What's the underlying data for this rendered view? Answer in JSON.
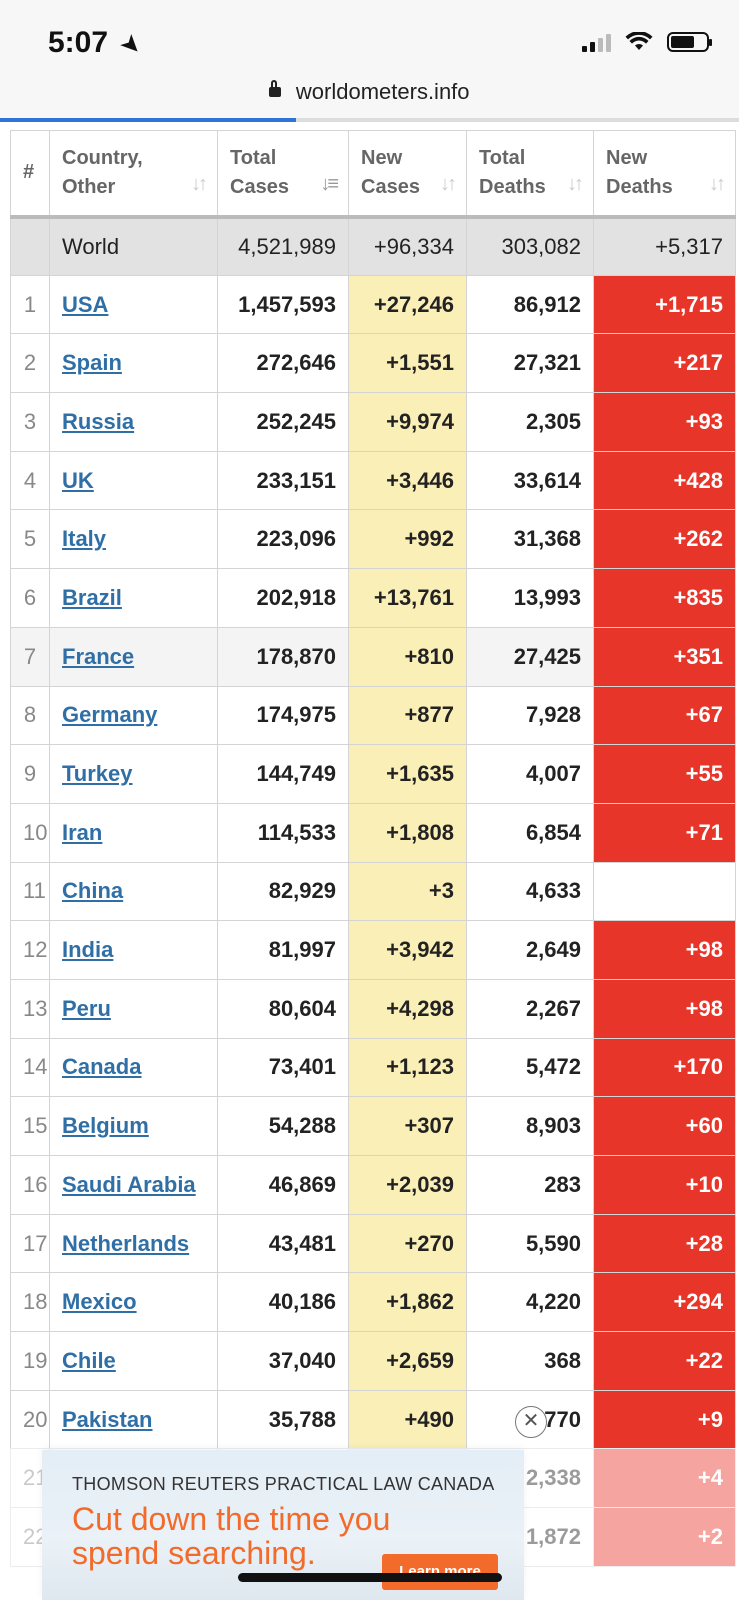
{
  "status": {
    "time": "5:07"
  },
  "browser": {
    "url": "worldometers.info"
  },
  "table": {
    "headers": {
      "rank": "#",
      "country_line1": "Country,",
      "country_line2": "Other",
      "total_cases_line1": "Total",
      "total_cases_line2": "Cases",
      "new_cases_line1": "New",
      "new_cases_line2": "Cases",
      "total_deaths_line1": "Total",
      "total_deaths_line2": "Deaths",
      "new_deaths_line1": "New",
      "new_deaths_line2": "Deaths"
    },
    "world": {
      "country": "World",
      "total_cases": "4,521,989",
      "new_cases": "+96,334",
      "total_deaths": "303,082",
      "new_deaths": "+5,317"
    },
    "rows": [
      {
        "rank": "1",
        "country": "USA",
        "total_cases": "1,457,593",
        "new_cases": "+27,246",
        "total_deaths": "86,912",
        "new_deaths": "+1,715"
      },
      {
        "rank": "2",
        "country": "Spain",
        "total_cases": "272,646",
        "new_cases": "+1,551",
        "total_deaths": "27,321",
        "new_deaths": "+217"
      },
      {
        "rank": "3",
        "country": "Russia",
        "total_cases": "252,245",
        "new_cases": "+9,974",
        "total_deaths": "2,305",
        "new_deaths": "+93"
      },
      {
        "rank": "4",
        "country": "UK",
        "total_cases": "233,151",
        "new_cases": "+3,446",
        "total_deaths": "33,614",
        "new_deaths": "+428"
      },
      {
        "rank": "5",
        "country": "Italy",
        "total_cases": "223,096",
        "new_cases": "+992",
        "total_deaths": "31,368",
        "new_deaths": "+262"
      },
      {
        "rank": "6",
        "country": "Brazil",
        "total_cases": "202,918",
        "new_cases": "+13,761",
        "total_deaths": "13,993",
        "new_deaths": "+835"
      },
      {
        "rank": "7",
        "country": "France",
        "total_cases": "178,870",
        "new_cases": "+810",
        "total_deaths": "27,425",
        "new_deaths": "+351"
      },
      {
        "rank": "8",
        "country": "Germany",
        "total_cases": "174,975",
        "new_cases": "+877",
        "total_deaths": "7,928",
        "new_deaths": "+67"
      },
      {
        "rank": "9",
        "country": "Turkey",
        "total_cases": "144,749",
        "new_cases": "+1,635",
        "total_deaths": "4,007",
        "new_deaths": "+55"
      },
      {
        "rank": "10",
        "country": "Iran",
        "total_cases": "114,533",
        "new_cases": "+1,808",
        "total_deaths": "6,854",
        "new_deaths": "+71"
      },
      {
        "rank": "11",
        "country": "China",
        "total_cases": "82,929",
        "new_cases": "+3",
        "total_deaths": "4,633",
        "new_deaths": ""
      },
      {
        "rank": "12",
        "country": "India",
        "total_cases": "81,997",
        "new_cases": "+3,942",
        "total_deaths": "2,649",
        "new_deaths": "+98"
      },
      {
        "rank": "13",
        "country": "Peru",
        "total_cases": "80,604",
        "new_cases": "+4,298",
        "total_deaths": "2,267",
        "new_deaths": "+98"
      },
      {
        "rank": "14",
        "country": "Canada",
        "total_cases": "73,401",
        "new_cases": "+1,123",
        "total_deaths": "5,472",
        "new_deaths": "+170"
      },
      {
        "rank": "15",
        "country": "Belgium",
        "total_cases": "54,288",
        "new_cases": "+307",
        "total_deaths": "8,903",
        "new_deaths": "+60"
      },
      {
        "rank": "16",
        "country": "Saudi Arabia",
        "total_cases": "46,869",
        "new_cases": "+2,039",
        "total_deaths": "283",
        "new_deaths": "+10"
      },
      {
        "rank": "17",
        "country": "Netherlands",
        "total_cases": "43,481",
        "new_cases": "+270",
        "total_deaths": "5,590",
        "new_deaths": "+28"
      },
      {
        "rank": "18",
        "country": "Mexico",
        "total_cases": "40,186",
        "new_cases": "+1,862",
        "total_deaths": "4,220",
        "new_deaths": "+294"
      },
      {
        "rank": "19",
        "country": "Chile",
        "total_cases": "37,040",
        "new_cases": "+2,659",
        "total_deaths": "368",
        "new_deaths": "+22"
      },
      {
        "rank": "20",
        "country": "Pakistan",
        "total_cases": "35,788",
        "new_cases": "+490",
        "total_deaths": "770",
        "new_deaths": "+9"
      },
      {
        "rank": "21",
        "country": "",
        "total_cases": "",
        "new_cases": "",
        "total_deaths": "2,338",
        "new_deaths": "+4"
      },
      {
        "rank": "22",
        "country": "",
        "total_cases": "",
        "new_cases": "",
        "total_deaths": "1,872",
        "new_deaths": "+2"
      }
    ]
  },
  "ad": {
    "brand": "THOMSON REUTERS PRACTICAL LAW CANADA",
    "headline_line1": "Cut down the time you",
    "headline_line2": "spend searching.",
    "cta": "Learn more",
    "close_glyph": "✕"
  },
  "colors": {
    "new_deaths_bg": "#e8352a",
    "new_cases_bg": "#fbefb8",
    "link": "#2f6fa6",
    "progress": "#2e74d8",
    "ad_accent": "#f26b2b"
  },
  "icons": [
    "location-arrow-icon",
    "cellular-signal-icon",
    "wifi-icon",
    "battery-icon",
    "lock-icon",
    "sort-icon",
    "close-icon"
  ]
}
